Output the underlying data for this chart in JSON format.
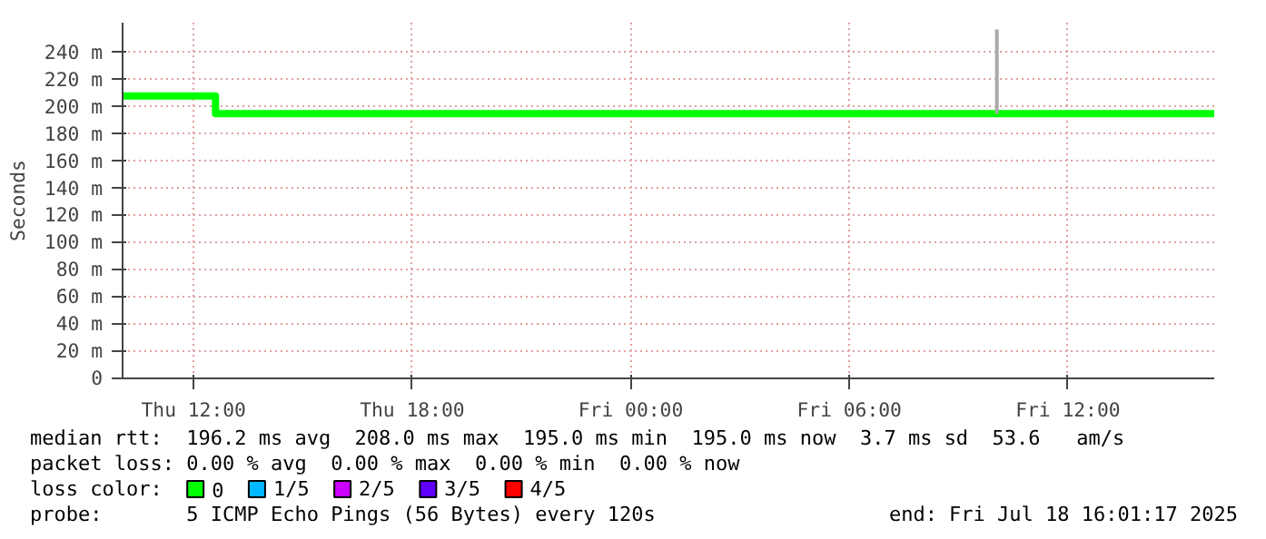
{
  "chart_data": {
    "type": "step",
    "ylabel": "Seconds",
    "legend_title": "loss color:",
    "xlim": [
      "2025-07-17T10:03",
      "2025-07-18T16:01"
    ],
    "xticks": [
      {
        "value": "2025-07-17T12:00",
        "label": "Thu 12:00"
      },
      {
        "value": "2025-07-17T18:00",
        "label": "Thu 18:00"
      },
      {
        "value": "2025-07-18T00:00",
        "label": "Fri 00:00"
      },
      {
        "value": "2025-07-18T06:00",
        "label": "Fri 06:00"
      },
      {
        "value": "2025-07-18T12:00",
        "label": "Fri 12:00"
      }
    ],
    "ylim": [
      0,
      262
    ],
    "yticks": [
      0,
      {
        "value": 20,
        "label": "20 m"
      },
      {
        "value": 40,
        "label": "40 m"
      },
      {
        "value": 60,
        "label": "60 m"
      },
      {
        "value": 80,
        "label": "80 m"
      },
      {
        "value": 100,
        "label": "100 m"
      },
      {
        "value": 120,
        "label": "120 m"
      },
      {
        "value": 140,
        "label": "140 m"
      },
      {
        "value": 160,
        "label": "160 m"
      },
      {
        "value": 180,
        "label": "180 m"
      },
      {
        "value": 200,
        "label": "200 m"
      },
      {
        "value": 220,
        "label": "220 m"
      },
      {
        "value": 240,
        "label": "240 m"
      }
    ],
    "grid": true,
    "legend": "bottom",
    "series": [
      {
        "name": "0",
        "color": "#00ff00",
        "x": [
          "2025-07-17T10:03",
          "2025-07-17T12:36",
          "2025-07-18T16:01"
        ],
        "values": [
          208,
          195,
          195
        ]
      },
      {
        "name": "1/5",
        "color": "#00b8ff"
      },
      {
        "name": "2/5",
        "color": "#cc00ff"
      },
      {
        "name": "3/5",
        "color": "#5f00ff"
      },
      {
        "name": "4/5",
        "color": "#ff0000"
      },
      {
        "type": "line",
        "color": "#aaaaaa",
        "x": [
          "2025-07-18T10:03",
          "2025-07-18T10:03"
        ],
        "values": [
          195,
          257
        ]
      }
    ],
    "annotations": [
      "median rtt:  196.2 ms avg  208.0 ms max  195.0 ms min  195.0 ms now  3.7 ms sd  53.6   am/s",
      "packet loss: 0.00 % avg  0.00 % max  0.00 % min  0.00 % now",
      "probe:       5 ICMP Echo Pings (56 Bytes) every 120s",
      "end: Fri Jul 18 16:01:17 2025"
    ]
  }
}
